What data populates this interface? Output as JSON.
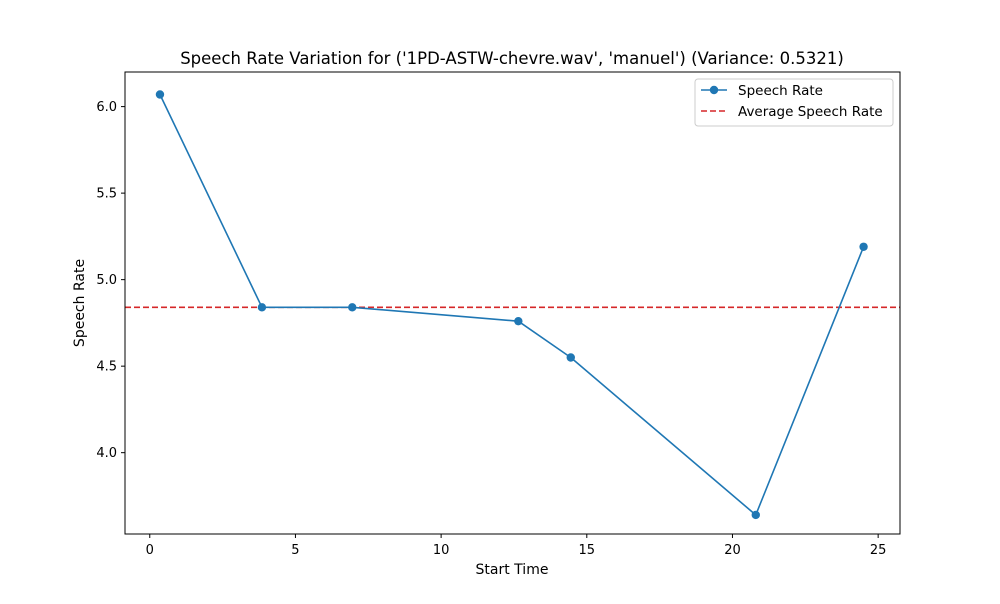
{
  "chart_data": {
    "type": "line",
    "title": "Speech Rate Variation for ('1PD-ASTW-chevre.wav', 'manuel') (Variance: 0.5321)",
    "xlabel": "Start Time",
    "ylabel": "Speech Rate",
    "xlim": [
      -0.85,
      25.75
    ],
    "ylim": [
      3.53,
      6.2
    ],
    "xticks": [
      0,
      5,
      10,
      15,
      20,
      25
    ],
    "yticks": [
      4.0,
      4.5,
      5.0,
      5.5,
      6.0
    ],
    "xtick_labels": [
      "0",
      "5",
      "10",
      "15",
      "20",
      "25"
    ],
    "ytick_labels": [
      "4.0",
      "4.5",
      "5.0",
      "5.5",
      "6.0"
    ],
    "grid": false,
    "legend_position": "top-right",
    "series": [
      {
        "name": "Speech Rate",
        "color": "#1f77b4",
        "marker": "circle",
        "x": [
          0.35,
          3.85,
          6.95,
          12.65,
          14.45,
          20.8,
          24.5
        ],
        "y": [
          6.07,
          4.84,
          4.84,
          4.76,
          4.55,
          3.64,
          5.19
        ]
      }
    ],
    "reference_lines": [
      {
        "name": "Average Speech Rate",
        "orientation": "horizontal",
        "value": 4.84,
        "color": "#d62728",
        "style": "dashed"
      }
    ]
  }
}
